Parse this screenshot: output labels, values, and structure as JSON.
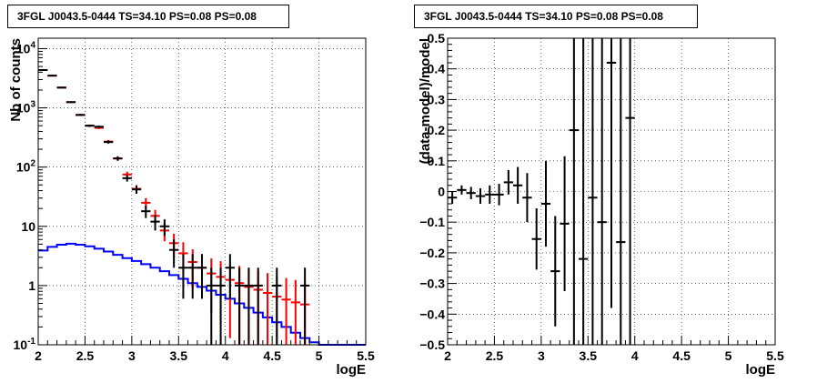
{
  "chart_data": [
    {
      "type": "line",
      "title": "3FGL J0043.5-0444 TS=34.10 PS=0.08 PS=0.08",
      "xlabel": "logE",
      "ylabel": "Nb of counts",
      "xlim": [
        2,
        5.5
      ],
      "ylim": [
        0.1,
        15000
      ],
      "yscale": "log",
      "grid": true,
      "xticks": [
        "2",
        "2.5",
        "3",
        "3.5",
        "4",
        "4.5",
        "5",
        "5.5"
      ],
      "yticks": [
        "10^{-1}",
        "1",
        "10",
        "10^{2}",
        "10^{3}",
        "10^{4}"
      ],
      "colors": {
        "model_total": "#ff0000",
        "model_source": "#0000ff",
        "data": "#000000"
      },
      "series": [
        {
          "kind": "data_points",
          "x": [
            2.05,
            2.15,
            2.25,
            2.35,
            2.45,
            2.55,
            2.65,
            2.75,
            2.85,
            2.95,
            3.05,
            3.15,
            3.25,
            3.35,
            3.45,
            3.55,
            3.65,
            3.75,
            3.85,
            3.95,
            4.05,
            4.15,
            4.25,
            4.35,
            4.45,
            4.55,
            4.65,
            4.75,
            4.85,
            4.95
          ],
          "y": [
            4350,
            3500,
            2200,
            1250,
            760,
            500,
            480,
            265,
            140,
            65,
            42,
            18,
            12,
            10,
            4,
            2,
            2,
            2,
            1,
            1,
            2,
            1,
            1,
            1,
            0,
            1,
            0,
            0,
            1,
            0
          ],
          "yerr_low": [
            60,
            60,
            47,
            35,
            28,
            22,
            22,
            16,
            12,
            8,
            6.5,
            4.2,
            3.5,
            3.1,
            2,
            1.4,
            1.4,
            1.4,
            1,
            1,
            1.4,
            1,
            1,
            1,
            0,
            1,
            0,
            0,
            1,
            0
          ],
          "yerr_high": [
            60,
            60,
            47,
            35,
            28,
            22,
            22,
            16,
            12,
            8,
            6.5,
            4.2,
            3.5,
            3.1,
            2,
            1.4,
            1.4,
            1.4,
            1,
            1,
            1.4,
            1,
            1,
            1,
            0,
            1,
            0,
            0,
            1,
            0
          ]
        },
        {
          "kind": "model_total",
          "x": [
            2.05,
            2.15,
            2.25,
            2.35,
            2.45,
            2.55,
            2.65,
            2.75,
            2.85,
            2.95,
            3.05,
            3.15,
            3.25,
            3.35,
            3.45,
            3.55,
            3.65,
            3.75,
            3.85,
            3.95,
            4.05,
            4.15,
            4.25,
            4.35,
            4.45,
            4.55,
            4.65,
            4.75,
            4.85
          ],
          "y": [
            4350,
            3500,
            2200,
            1250,
            760,
            500,
            460,
            270,
            140,
            75,
            43,
            25,
            15,
            8.5,
            5.2,
            3.5,
            2.5,
            2,
            1.6,
            1.4,
            1.25,
            1.1,
            0.95,
            0.85,
            0.75,
            0.65,
            0.58,
            0.52,
            0.48
          ],
          "err": [
            66,
            59,
            47,
            35,
            28,
            22,
            21,
            16,
            12,
            8.7,
            6.6,
            5,
            3.9,
            2.9,
            2.3,
            1.9,
            1.6,
            1.4,
            1.26,
            1.18,
            1.12,
            1.05,
            0.97,
            0.92,
            0.87,
            0.8,
            0.76,
            0.72,
            0.69
          ]
        },
        {
          "kind": "model_source",
          "x": [
            2.05,
            2.15,
            2.25,
            2.35,
            2.45,
            2.55,
            2.65,
            2.75,
            2.85,
            2.95,
            3.05,
            3.15,
            3.25,
            3.35,
            3.45,
            3.55,
            3.65,
            3.75,
            3.85,
            3.95,
            4.05,
            4.15,
            4.25,
            4.35,
            4.45,
            4.55,
            4.65,
            4.75,
            4.85,
            4.95,
            5.05,
            5.15,
            5.25,
            5.35,
            5.45
          ],
          "y": [
            3.9,
            4.5,
            4.9,
            5.1,
            4.9,
            4.6,
            4.2,
            3.75,
            3.3,
            2.9,
            2.6,
            2.3,
            2,
            1.75,
            1.5,
            1.3,
            1.1,
            0.95,
            0.82,
            0.7,
            0.6,
            0.5,
            0.42,
            0.35,
            0.29,
            0.24,
            0.2,
            0.16,
            0.13,
            0.11,
            0.1,
            0.1,
            0.1,
            0.1,
            0.1
          ]
        }
      ]
    },
    {
      "type": "scatter",
      "title": "3FGL J0043.5-0444 TS=34.10 PS=0.08 PS=0.08",
      "xlabel": "logE",
      "ylabel": "(data-model)/model",
      "xlim": [
        2,
        5.5
      ],
      "ylim": [
        -0.5,
        0.5
      ],
      "grid": true,
      "xticks": [
        "2",
        "2.5",
        "3",
        "3.5",
        "4",
        "4.5",
        "5",
        "5.5"
      ],
      "yticks": [
        "−0.5",
        "−0.4",
        "−0.3",
        "−0.2",
        "−0.1",
        "0",
        "0.1",
        "0.2",
        "0.3",
        "0.4",
        "0.5"
      ],
      "series": [
        {
          "kind": "residuals",
          "x": [
            2.05,
            2.15,
            2.25,
            2.35,
            2.45,
            2.55,
            2.65,
            2.75,
            2.85,
            2.95,
            3.05,
            3.15,
            3.25,
            3.35,
            3.45,
            3.55,
            3.65,
            3.75,
            3.85,
            3.95
          ],
          "y": [
            -0.02,
            0.005,
            -0.005,
            -0.015,
            -0.01,
            -0.01,
            0.03,
            0.02,
            -0.02,
            -0.155,
            -0.04,
            -0.26,
            -0.105,
            0.2,
            -0.22,
            -0.02,
            -0.1,
            0.42,
            -0.165,
            0.24
          ],
          "yerr_low": [
            0.02,
            0.015,
            0.02,
            0.025,
            0.03,
            0.035,
            0.04,
            0.06,
            0.08,
            0.1,
            0.14,
            0.18,
            0.22,
            0.8,
            0.8,
            0.8,
            0.8,
            0.8,
            0.8,
            0.8
          ],
          "yerr_high": [
            0.02,
            0.015,
            0.02,
            0.025,
            0.03,
            0.035,
            0.04,
            0.06,
            0.08,
            0.1,
            0.14,
            0.18,
            0.22,
            0.8,
            0.8,
            0.8,
            0.8,
            0.8,
            0.8,
            0.8
          ]
        }
      ]
    }
  ]
}
